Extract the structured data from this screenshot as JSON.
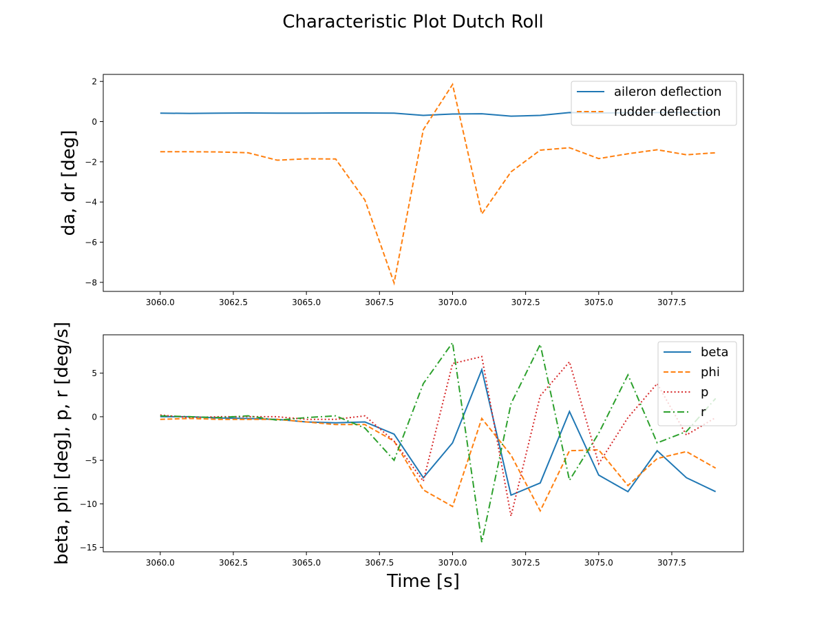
{
  "figure": {
    "title": "Characteristic Plot Dutch Roll"
  },
  "colors": {
    "blue": "#1f77b4",
    "orange": "#ff7f0e",
    "red": "#d62728",
    "green": "#2ca02c"
  },
  "chart_data": [
    {
      "type": "line",
      "title": "",
      "xlabel": "",
      "ylabel": "da, dr [deg]",
      "xlim": [
        3058.05,
        3079.95
      ],
      "ylim": [
        -8.45,
        2.35
      ],
      "xticks": [
        3060.0,
        3062.5,
        3065.0,
        3067.5,
        3070.0,
        3072.5,
        3075.0,
        3077.5
      ],
      "xtick_labels": [
        "3060.0",
        "3062.5",
        "3065.0",
        "3067.5",
        "3070.0",
        "3072.5",
        "3075.0",
        "3077.5"
      ],
      "yticks": [
        -8,
        -6,
        -4,
        -2,
        0,
        2
      ],
      "ytick_labels": [
        "−8",
        "−6",
        "−4",
        "−2",
        "0",
        "2"
      ],
      "legend_position": "top-right",
      "x": [
        3060,
        3061,
        3062,
        3063,
        3064,
        3065,
        3066,
        3067,
        3068,
        3069,
        3070,
        3071,
        3072,
        3073,
        3074,
        3075,
        3076,
        3077,
        3078,
        3079
      ],
      "series": [
        {
          "name": "aileron deflection",
          "color": "#1f77b4",
          "style": "solid",
          "values": [
            0.42,
            0.41,
            0.42,
            0.43,
            0.42,
            0.42,
            0.43,
            0.43,
            0.42,
            0.31,
            0.38,
            0.39,
            0.27,
            0.31,
            0.45,
            0.43,
            0.44,
            0.45,
            0.45,
            0.45
          ]
        },
        {
          "name": "rudder deflection",
          "color": "#ff7f0e",
          "style": "dashed",
          "values": [
            -1.5,
            -1.5,
            -1.51,
            -1.55,
            -1.92,
            -1.85,
            -1.86,
            -3.9,
            -8.03,
            -0.4,
            1.85,
            -4.6,
            -2.5,
            -1.42,
            -1.3,
            -1.84,
            -1.6,
            -1.4,
            -1.65,
            -1.55
          ]
        }
      ]
    },
    {
      "type": "line",
      "title": "",
      "xlabel": "Time [s]",
      "ylabel": "beta, phi [deg], p, r [deg/s]",
      "xlim": [
        3058.05,
        3079.95
      ],
      "ylim": [
        -15.5,
        9.4
      ],
      "xticks": [
        3060.0,
        3062.5,
        3065.0,
        3067.5,
        3070.0,
        3072.5,
        3075.0,
        3077.5
      ],
      "xtick_labels": [
        "3060.0",
        "3062.5",
        "3065.0",
        "3067.5",
        "3070.0",
        "3072.5",
        "3075.0",
        "3077.5"
      ],
      "yticks": [
        -15,
        -10,
        -5,
        0,
        5
      ],
      "ytick_labels": [
        "−15",
        "−10",
        "−5",
        "0",
        "5"
      ],
      "legend_position": "top-right",
      "x": [
        3060,
        3061,
        3062,
        3063,
        3064,
        3065,
        3066,
        3067,
        3068,
        3069,
        3070,
        3071,
        3072,
        3073,
        3074,
        3075,
        3076,
        3077,
        3078,
        3079
      ],
      "series": [
        {
          "name": "beta",
          "color": "#1f77b4",
          "style": "solid",
          "values": [
            0.0,
            0.0,
            -0.15,
            -0.2,
            -0.3,
            -0.6,
            -0.7,
            -0.6,
            -2.0,
            -7.0,
            -3.0,
            5.4,
            -9.0,
            -7.6,
            0.6,
            -6.7,
            -8.6,
            -3.9,
            -7.0,
            -8.6
          ]
        },
        {
          "name": "phi",
          "color": "#ff7f0e",
          "style": "dashed",
          "values": [
            -0.3,
            -0.2,
            -0.3,
            -0.3,
            -0.3,
            -0.6,
            -0.9,
            -0.9,
            -2.8,
            -8.4,
            -10.3,
            -0.2,
            -4.4,
            -10.8,
            -3.9,
            -3.8,
            -7.9,
            -4.8,
            -4.0,
            -5.9
          ]
        },
        {
          "name": "p",
          "color": "#d62728",
          "style": "dotted",
          "values": [
            0.2,
            -0.1,
            0.0,
            0.0,
            0.0,
            -0.3,
            -0.3,
            0.1,
            -2.8,
            -7.4,
            6.1,
            6.9,
            -11.4,
            2.4,
            6.3,
            -5.4,
            -0.1,
            3.8,
            -2.1,
            -0.1
          ]
        },
        {
          "name": "r",
          "color": "#2ca02c",
          "style": "dashdot",
          "values": [
            0.1,
            0.0,
            -0.1,
            0.1,
            -0.4,
            -0.1,
            0.1,
            -1.3,
            -5.0,
            3.8,
            8.5,
            -14.4,
            1.5,
            8.3,
            -7.3,
            -1.9,
            4.8,
            -3.0,
            -1.7,
            2.1
          ]
        }
      ]
    }
  ]
}
